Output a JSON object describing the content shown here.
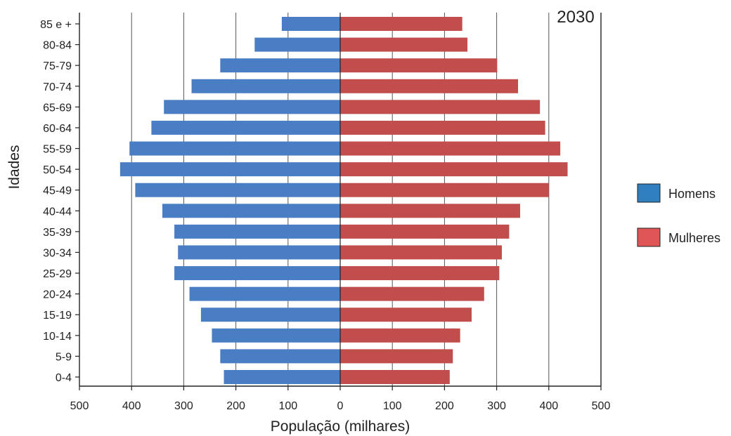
{
  "chart_data": {
    "type": "bar",
    "orientation": "horizontal",
    "layout": "population-pyramid",
    "annotation": "2030",
    "xlabel": "População (milhares)",
    "ylabel": "Idades",
    "xlim": [
      -500,
      500
    ],
    "xticks": [
      "500",
      "400",
      "300",
      "200",
      "100",
      "0",
      "100",
      "200",
      "300",
      "400",
      "500"
    ],
    "grid": true,
    "legend_position": "right",
    "categories": [
      "85 e +",
      "80-84",
      "75-79",
      "70-74",
      "65-69",
      "60-64",
      "55-59",
      "50-54",
      "45-49",
      "40-44",
      "35-39",
      "30-34",
      "25-29",
      "20-24",
      "15-19",
      "10-14",
      "5-9",
      "0-4"
    ],
    "series": [
      {
        "name": "Homens",
        "side": "left",
        "color": "#4a7ec4",
        "legend_color": "#2f7fc1",
        "values": [
          112,
          164,
          230,
          285,
          338,
          362,
          404,
          422,
          393,
          341,
          318,
          311,
          318,
          289,
          267,
          246,
          230,
          223
        ]
      },
      {
        "name": "Mulheres",
        "side": "right",
        "color": "#c14e4c",
        "legend_color": "#e05555",
        "values": [
          234,
          244,
          301,
          341,
          383,
          393,
          422,
          436,
          400,
          345,
          324,
          310,
          305,
          276,
          252,
          230,
          216,
          210
        ]
      }
    ]
  }
}
